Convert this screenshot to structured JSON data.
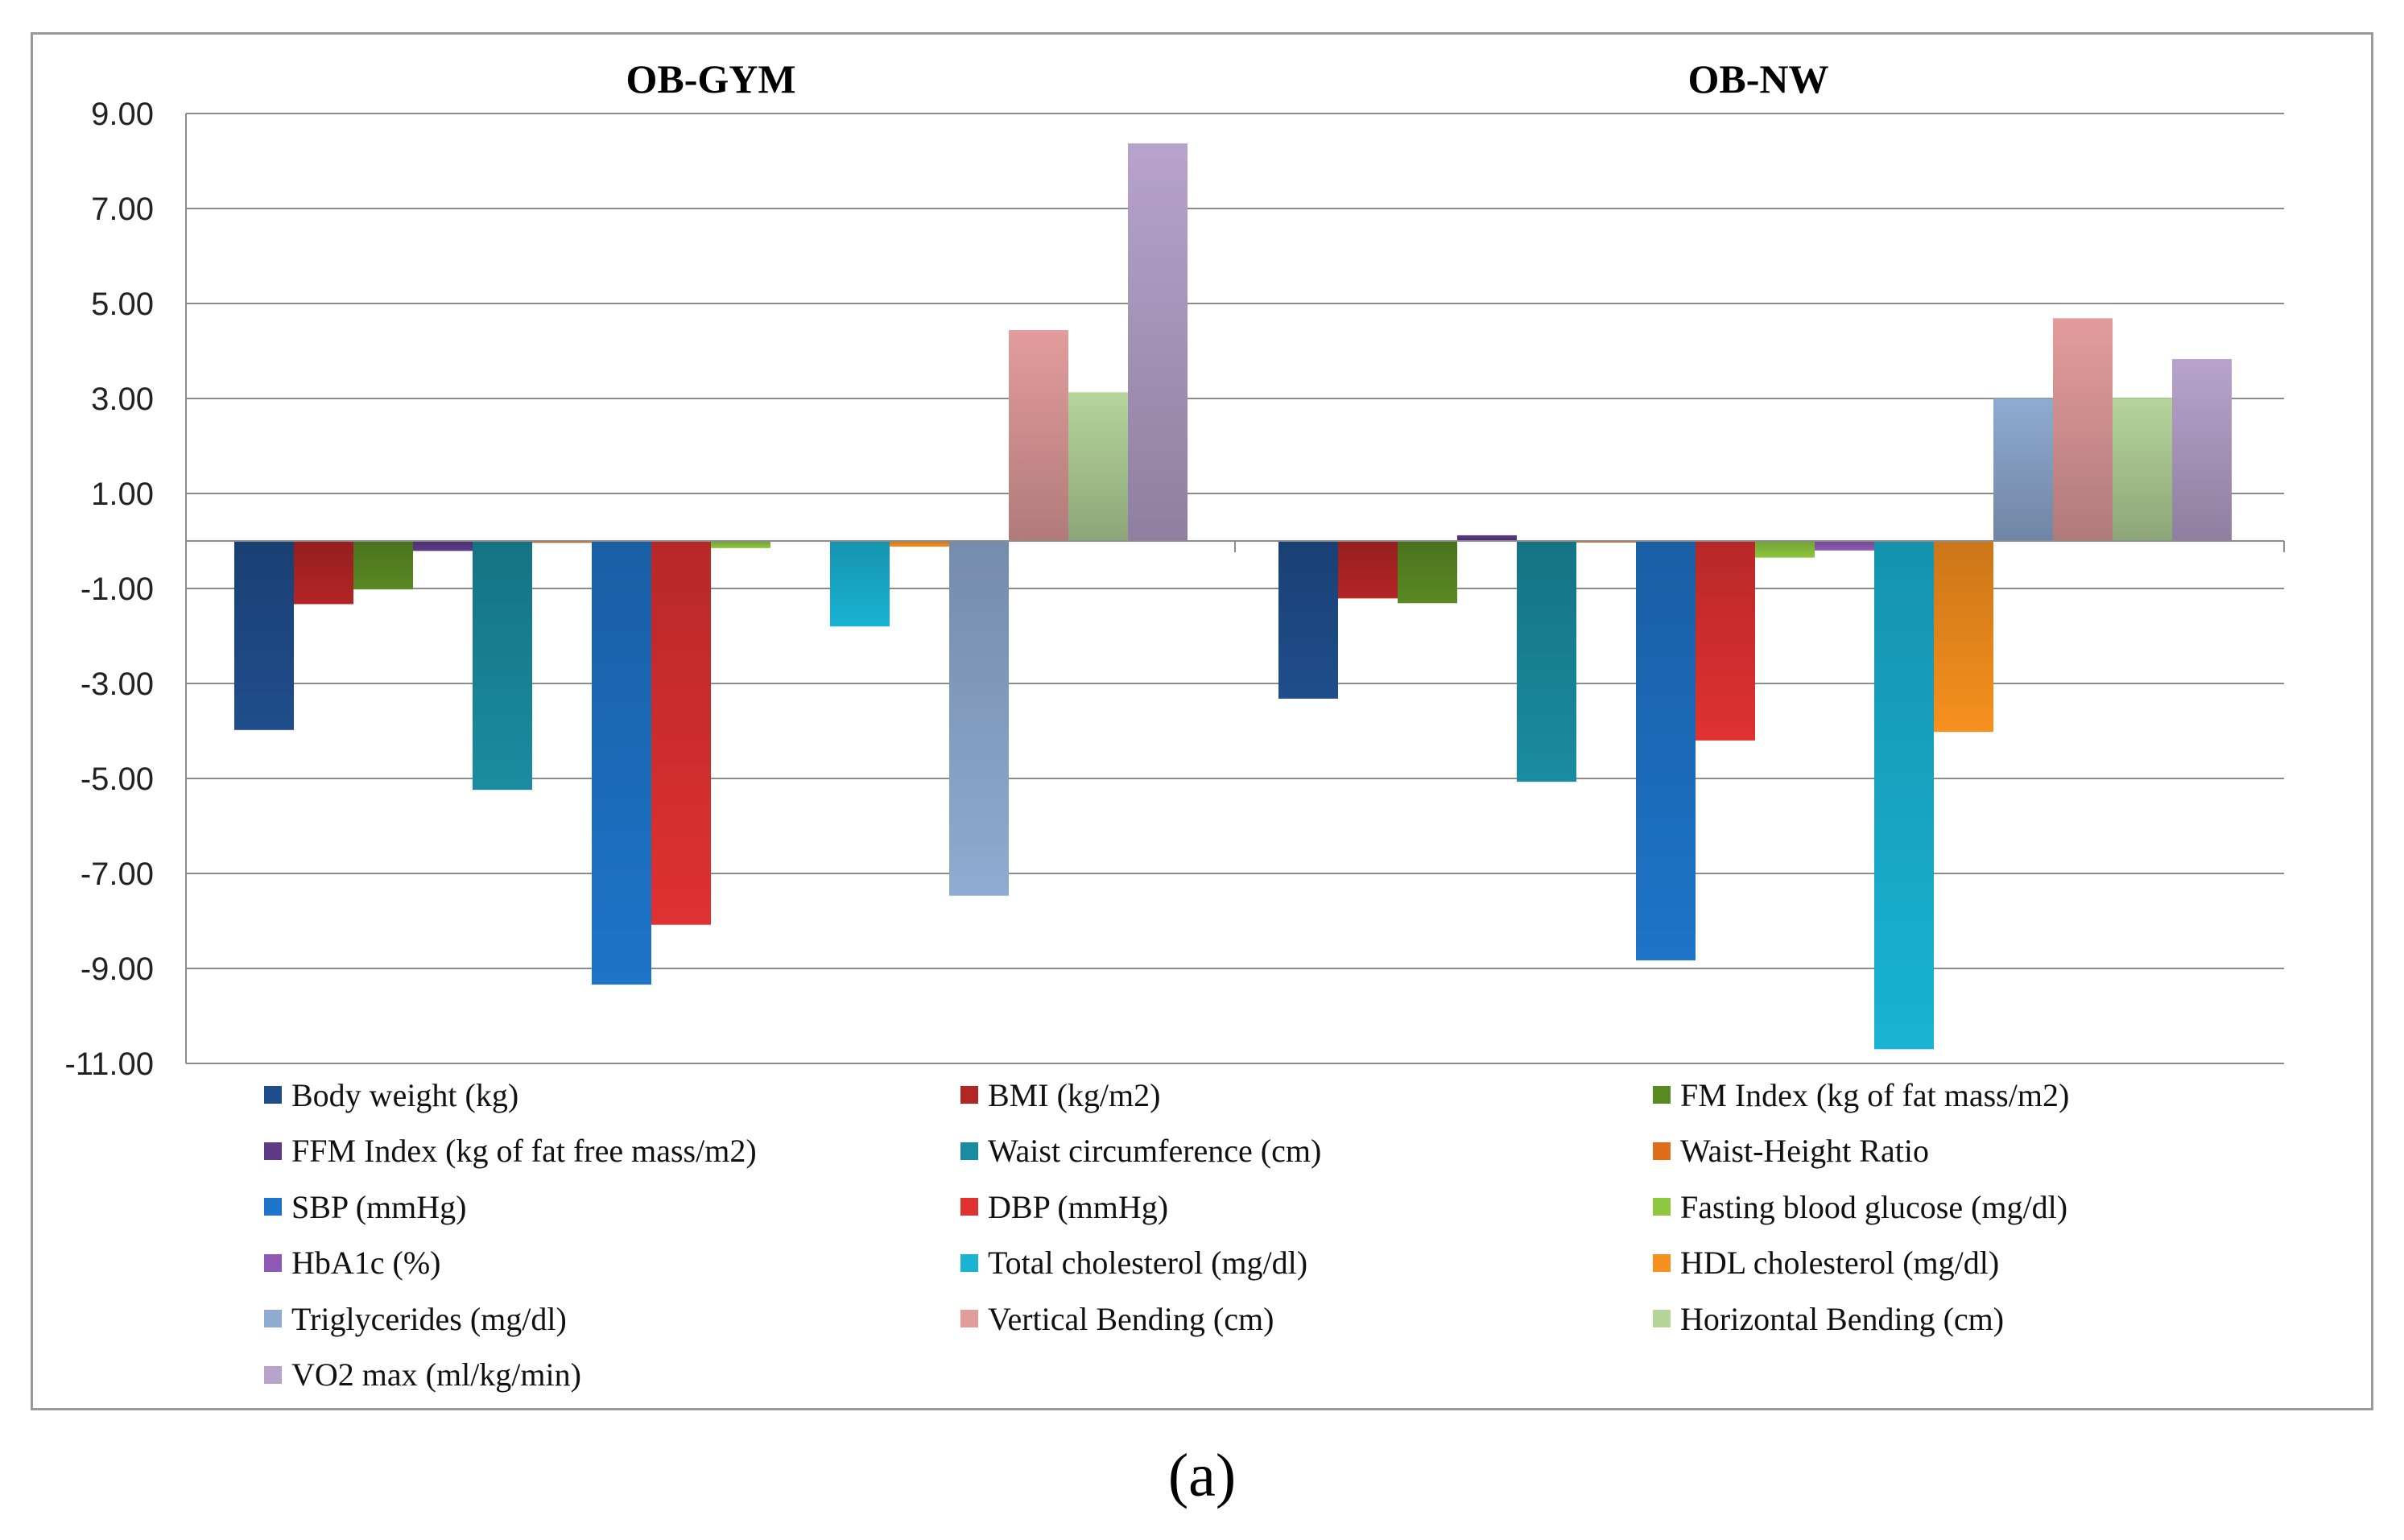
{
  "caption": "(a)",
  "chart_data": {
    "type": "bar",
    "groups": [
      "OB-GYM",
      "OB-NW"
    ],
    "ylim": [
      -11,
      9
    ],
    "yticks": [
      "9.00",
      "7.00",
      "5.00",
      "3.00",
      "1.00",
      "-1.00",
      "-3.00",
      "-5.00",
      "-7.00",
      "-9.00",
      "-11.00"
    ],
    "grid": true,
    "legend_position": "bottom",
    "series": [
      {
        "name": "Body weight (kg)",
        "color": "#1f4e8c",
        "values": [
          -3.98,
          -3.32
        ]
      },
      {
        "name": "BMI (kg/m2)",
        "color": "#b42525",
        "values": [
          -1.33,
          -1.21
        ]
      },
      {
        "name": "FM Index (kg of fat mass/m2)",
        "color": "#5a8a23",
        "values": [
          -1.02,
          -1.31
        ]
      },
      {
        "name": "FFM Index (kg of fat free mass/m2)",
        "color": "#5e3a87",
        "values": [
          -0.21,
          0.12
        ]
      },
      {
        "name": "Waist circumference (cm)",
        "color": "#1a8ca1",
        "values": [
          -5.24,
          -5.07
        ]
      },
      {
        "name": "Waist-Height Ratio",
        "color": "#e06d1a",
        "values": [
          -0.04,
          -0.03
        ]
      },
      {
        "name": "SBP (mmHg)",
        "color": "#1e74c9",
        "values": [
          -9.34,
          -8.83
        ]
      },
      {
        "name": "DBP (mmHg)",
        "color": "#e03131",
        "values": [
          -8.08,
          -4.2
        ]
      },
      {
        "name": "Fasting blood glucose (mg/dl)",
        "color": "#8dc63f",
        "values": [
          -0.15,
          -0.35
        ]
      },
      {
        "name": "HbA1c (%)",
        "color": "#8e5ab5",
        "values": [
          0,
          -0.2
        ]
      },
      {
        "name": "Total cholesterol (mg/dl)",
        "color": "#19b3d4",
        "values": [
          -1.8,
          -10.7
        ]
      },
      {
        "name": "HDL cholesterol (mg/dl)",
        "color": "#f7901e",
        "values": [
          -0.12,
          -4.02
        ]
      },
      {
        "name": "Triglycerides (mg/dl)",
        "color": "#8fabd1",
        "values": [
          -7.47,
          3.0
        ]
      },
      {
        "name": "Vertical Bending (cm)",
        "color": "#e39c9c",
        "values": [
          4.44,
          4.69
        ]
      },
      {
        "name": "Horizontal Bending (cm)",
        "color": "#b5d59b",
        "values": [
          3.13,
          3.01
        ]
      },
      {
        "name": "VO2 max (ml/kg/min)",
        "color": "#b7a3cc",
        "values": [
          8.37,
          3.83
        ]
      }
    ]
  }
}
